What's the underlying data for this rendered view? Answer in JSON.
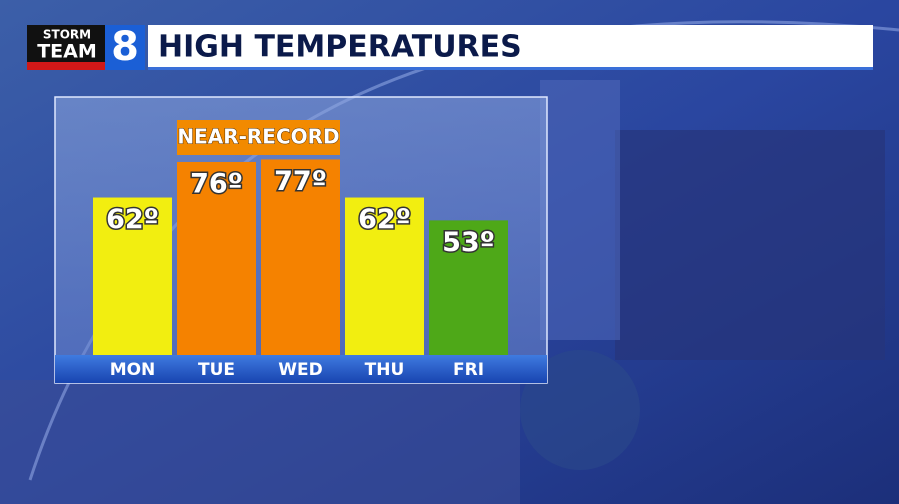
{
  "logo": {
    "line1": "STORM",
    "line2": "TEAM",
    "number": "8"
  },
  "chart_data": {
    "type": "bar",
    "title": "HIGH TEMPERATURES",
    "categories": [
      "MON",
      "TUE",
      "WED",
      "THU",
      "FRI"
    ],
    "values": [
      62,
      76,
      77,
      62,
      53
    ],
    "value_labels": [
      "62º",
      "76º",
      "77º",
      "62º",
      "53º"
    ],
    "colors": [
      "#f2ee10",
      "#f58200",
      "#f58200",
      "#f2ee10",
      "#4ea818"
    ],
    "annotation": "NEAR-RECORD",
    "ylim": [
      0,
      100
    ]
  }
}
